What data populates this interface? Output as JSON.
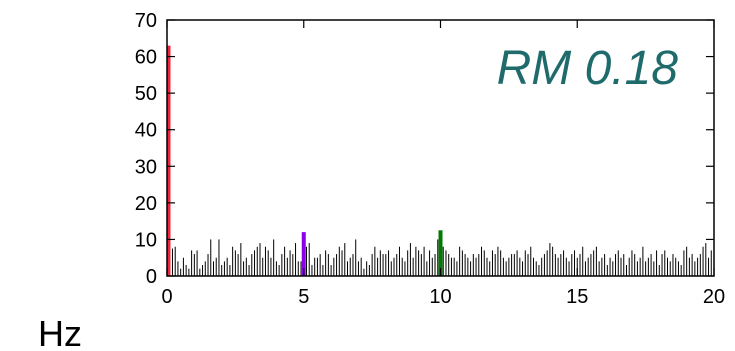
{
  "chart_data": {
    "type": "bar",
    "title": "",
    "xlabel": "Hz",
    "ylabel": "",
    "xlim": [
      0,
      20
    ],
    "ylim": [
      0,
      70
    ],
    "x_ticks": [
      0,
      5,
      10,
      15,
      20
    ],
    "y_ticks": [
      0,
      10,
      20,
      30,
      40,
      50,
      60,
      70
    ],
    "annotation": "RM 0.18",
    "highlighted_peaks": [
      {
        "x": 0.0,
        "value": 63,
        "color": "#f0243c"
      },
      {
        "x": 5.0,
        "value": 12,
        "color": "#8a00e6"
      },
      {
        "x": 10.0,
        "value": 12.5,
        "color": "#007a00"
      }
    ],
    "background_bars": {
      "x_start": 0.1,
      "x_end": 19.9,
      "step": 0.1,
      "color": "#000000",
      "values": [
        7.5,
        7.5,
        8,
        4,
        2,
        5,
        3,
        2,
        7,
        6,
        7,
        2,
        3,
        4,
        6,
        10,
        4,
        5,
        10,
        3,
        4,
        5,
        3,
        8,
        7,
        6,
        9,
        4,
        5,
        3,
        6,
        7,
        8,
        9,
        5,
        8,
        7,
        5,
        10,
        4,
        3,
        6,
        8,
        5,
        7,
        6,
        9,
        4,
        4,
        3,
        8,
        9,
        3,
        5,
        5,
        6,
        3,
        7,
        6,
        3,
        5,
        6,
        8,
        7,
        9,
        4,
        5,
        6,
        10,
        4,
        5,
        2,
        4,
        3,
        6,
        8,
        5,
        7,
        6,
        6,
        7,
        4,
        5,
        6,
        8,
        5,
        4,
        7,
        9,
        5,
        8,
        7,
        6,
        8,
        4,
        7,
        5,
        6,
        10,
        9,
        8,
        7,
        6,
        5,
        5,
        4,
        8,
        7,
        6,
        5,
        4,
        6,
        5,
        6,
        8,
        7,
        5,
        4,
        7,
        6,
        8,
        7,
        5,
        4,
        5,
        6,
        6,
        7,
        5,
        4,
        7,
        6,
        8,
        5,
        4,
        3,
        5,
        6,
        7,
        9,
        8,
        6,
        5,
        6,
        7,
        5,
        4,
        6,
        7,
        5,
        6,
        8,
        4,
        5,
        6,
        7,
        8,
        4,
        5,
        6,
        3,
        5,
        4,
        6,
        7,
        5,
        6,
        3,
        5,
        7,
        6,
        4,
        5,
        8,
        4,
        5,
        6,
        4,
        7,
        3,
        6,
        7,
        5,
        4,
        6,
        5,
        4,
        3,
        7,
        8,
        5,
        6,
        4,
        5,
        6,
        8,
        9,
        5,
        7
      ]
    }
  }
}
